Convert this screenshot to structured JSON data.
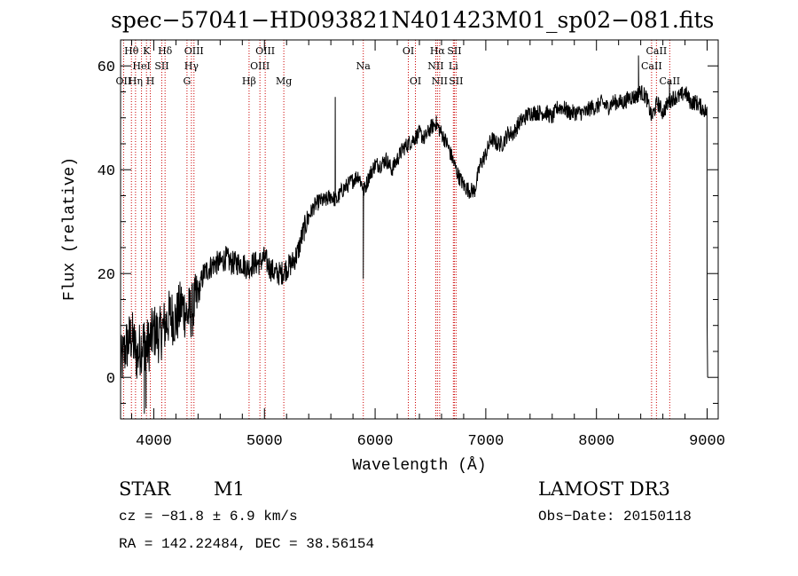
{
  "header": {
    "title": "spec−57041−HD093821N401423M01_sp02−081.fits"
  },
  "info": {
    "object_type": "STAR",
    "subclass": "M1",
    "survey": "LAMOST DR3",
    "cz": "cz = −81.8 ± 6.9 km/s",
    "obs_date": "Obs−Date: 20150118",
    "ra_dec": "RA = 142.22484, DEC =  38.56154"
  },
  "chart_data": {
    "type": "line",
    "title": "spec−57041−HD093821N401423M01_sp02−081.fits",
    "xlabel": "Wavelength (Å)",
    "ylabel": "Flux (relative)",
    "xlim": [
      3700,
      9100
    ],
    "ylim": [
      -8,
      65
    ],
    "xticks": [
      4000,
      5000,
      6000,
      7000,
      8000,
      9000
    ],
    "yticks": [
      0,
      20,
      40,
      60
    ],
    "line_color": "#000000",
    "marker_color": "#cc0000",
    "series": [
      {
        "x": [
          3700,
          3750,
          3800,
          3850,
          3900,
          3950,
          4000,
          4050,
          4100,
          4150,
          4200,
          4250,
          4300,
          4350,
          4400,
          4450,
          4500,
          4550,
          4600,
          4650,
          4700,
          4750,
          4800,
          4850,
          4900,
          4950,
          5000,
          5050,
          5100,
          5150,
          5200,
          5250,
          5300,
          5350,
          5400,
          5450,
          5500,
          5550,
          5600,
          5650,
          5700,
          5750,
          5800,
          5850,
          5900,
          5950,
          6000,
          6050,
          6100,
          6150,
          6200,
          6250,
          6300,
          6350,
          6400,
          6450,
          6500,
          6550,
          6600,
          6650,
          6700,
          6750,
          6800,
          6850,
          6900,
          6950,
          7000,
          7050,
          7100,
          7150,
          7200,
          7250,
          7300,
          7350,
          7400,
          7450,
          7500,
          7550,
          7600,
          7650,
          7700,
          7750,
          7800,
          7850,
          7900,
          7950,
          8000,
          8050,
          8100,
          8150,
          8200,
          8250,
          8300,
          8350,
          8400,
          8450,
          8500,
          8550,
          8600,
          8650,
          8700,
          8750,
          8800,
          8850,
          8900,
          8950,
          9000
        ],
        "values": [
          2,
          6,
          8,
          4,
          7,
          6,
          9,
          8,
          10,
          12,
          11,
          14,
          12,
          13,
          16,
          20,
          21,
          22,
          22,
          23,
          22,
          22,
          22,
          21,
          22,
          22,
          23,
          21,
          20,
          20,
          21,
          22,
          24,
          28,
          31,
          33,
          34,
          34,
          35,
          34,
          36,
          37,
          38,
          39,
          36,
          39,
          41,
          41,
          42,
          40,
          42,
          44,
          45,
          46,
          47,
          46,
          48,
          49,
          47,
          45,
          42,
          39,
          37,
          36,
          36,
          41,
          43,
          46,
          45,
          45,
          47,
          47,
          49,
          50,
          51,
          51,
          51,
          51,
          50,
          52,
          52,
          51,
          51,
          51,
          51,
          52,
          52,
          53,
          52,
          53,
          53,
          53,
          54,
          54,
          55,
          54,
          50,
          53,
          51,
          53,
          54,
          54,
          55,
          53,
          53,
          52,
          51
        ],
        "spikes": [
          {
            "x": 3915,
            "y": -7
          },
          {
            "x": 3930,
            "y": -6
          },
          {
            "x": 5640,
            "y": 54
          },
          {
            "x": 5893,
            "y": 19
          },
          {
            "x": 8380,
            "y": 62
          },
          {
            "x": 8660,
            "y": 57
          },
          {
            "x": 9000,
            "y": 10
          },
          {
            "x": 9005,
            "y": 0
          }
        ]
      }
    ],
    "line_markers": [
      {
        "x": 3727,
        "label": "OII",
        "row": 3
      },
      {
        "x": 3798,
        "label": "Hθ",
        "row": 1
      },
      {
        "x": 3835,
        "label": "Hη",
        "row": 3
      },
      {
        "x": 3889,
        "label": "HeI",
        "row": 2
      },
      {
        "x": 3934,
        "label": "K",
        "row": 1
      },
      {
        "x": 3969,
        "label": "H",
        "row": 3
      },
      {
        "x": 4072,
        "label": "SII",
        "row": 2
      },
      {
        "x": 4102,
        "label": "Hδ",
        "row": 1
      },
      {
        "x": 4300,
        "label": "G",
        "row": 3
      },
      {
        "x": 4340,
        "label": "Hγ",
        "row": 2
      },
      {
        "x": 4363,
        "label": "OIII",
        "row": 1
      },
      {
        "x": 4861,
        "label": "Hβ",
        "row": 3
      },
      {
        "x": 4959,
        "label": "OIII",
        "row": 2
      },
      {
        "x": 5007,
        "label": "OIII",
        "row": 1
      },
      {
        "x": 5175,
        "label": "Mg",
        "row": 3
      },
      {
        "x": 5893,
        "label": "Na",
        "row": 2
      },
      {
        "x": 6300,
        "label": "OI",
        "row": 1
      },
      {
        "x": 6364,
        "label": "OI",
        "row": 3
      },
      {
        "x": 6548,
        "label": "NII",
        "row": 2
      },
      {
        "x": 6563,
        "label": "Hα",
        "row": 1
      },
      {
        "x": 6583,
        "label": "NII",
        "row": 3
      },
      {
        "x": 6707,
        "label": "Li",
        "row": 2
      },
      {
        "x": 6716,
        "label": "SII",
        "row": 1
      },
      {
        "x": 6731,
        "label": "SII",
        "row": 3
      },
      {
        "x": 8498,
        "label": "CaII",
        "row": 2
      },
      {
        "x": 8542,
        "label": "CaII",
        "row": 1
      },
      {
        "x": 8662,
        "label": "CaII",
        "row": 3
      }
    ]
  }
}
